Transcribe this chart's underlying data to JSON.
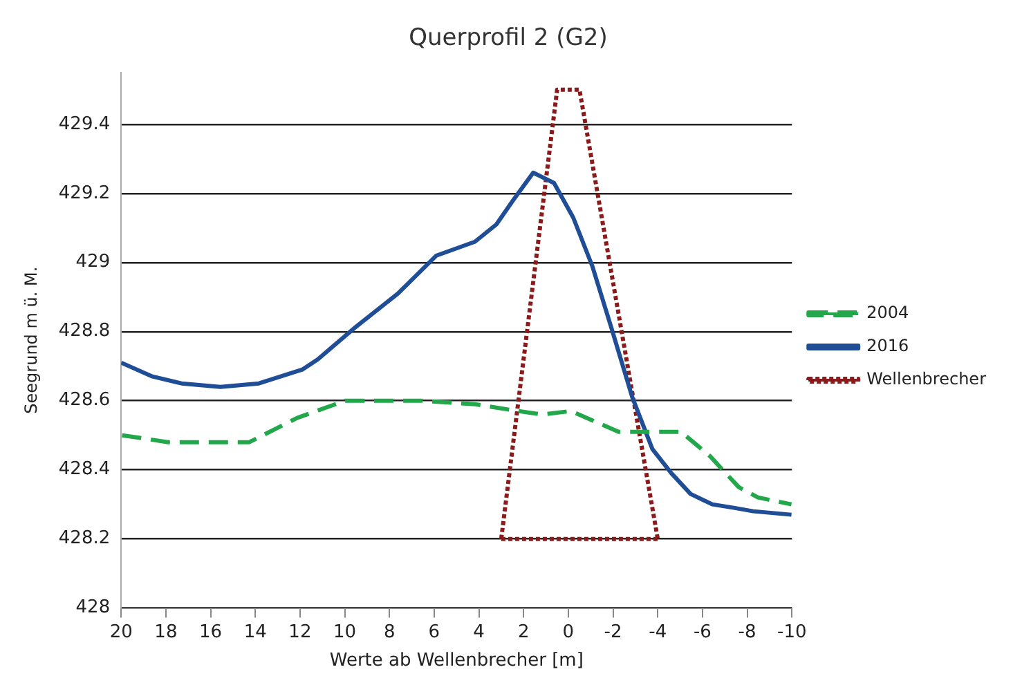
{
  "chart_data": {
    "type": "line",
    "title": "Querprofil 2 (G2)",
    "xlabel": "Werte ab Wellenbrecher [m]",
    "ylabel": "Seegrund m ü. M.",
    "xlim": [
      20,
      -10
    ],
    "xticks": [
      20,
      18,
      16,
      14,
      12,
      10,
      8,
      6,
      4,
      2,
      0,
      -2,
      -4,
      -6,
      -8,
      -10
    ],
    "ylim": [
      428,
      429.55
    ],
    "yticks": [
      428,
      428.2,
      428.4,
      428.6,
      428.8,
      429,
      429.2,
      429.4
    ],
    "grid": "y",
    "legend": "right",
    "marker": "none",
    "series": [
      {
        "name": "2004",
        "color": "#22a84a",
        "line_style": "dashed",
        "x": [
          19.96,
          17.9,
          15.97,
          14.27,
          12.13,
          9.98,
          6.55,
          4.18,
          2.25,
          1.18,
          -0.11,
          -2.25,
          -5.04,
          -6.33,
          -7.62,
          -8.48,
          -9.98
        ],
        "values": [
          428.5,
          428.48,
          428.48,
          428.48,
          428.55,
          428.6,
          428.6,
          428.59,
          428.57,
          428.56,
          428.57,
          428.51,
          428.51,
          428.44,
          428.35,
          428.32,
          428.3
        ]
      },
      {
        "name": "2016",
        "color": "#1f4e96",
        "line_style": "solid",
        "x": [
          20,
          18.6,
          17.3,
          15.56,
          13.84,
          11.9,
          11.2,
          9.57,
          7.62,
          5.9,
          4.18,
          3.22,
          2.47,
          1.57,
          0.64,
          -0.22,
          -1.07,
          -1.93,
          -2.86,
          -3.76,
          -4.61,
          -5.47,
          -6.44,
          -7.4,
          -8.27,
          -9.98
        ],
        "values": [
          428.71,
          428.67,
          428.65,
          428.64,
          428.65,
          428.69,
          428.72,
          428.81,
          428.91,
          429.02,
          429.06,
          429.11,
          429.18,
          429.26,
          429.23,
          429.13,
          428.99,
          428.81,
          428.61,
          428.46,
          428.39,
          428.33,
          428.3,
          428.29,
          428.28,
          428.27
        ]
      },
      {
        "name": "Wellenbrecher",
        "color": "#8b1a1a",
        "line_style": "dotted",
        "x": [
          3,
          0.5,
          -0.5,
          -4
        ],
        "values": [
          428.2,
          429.5,
          429.5,
          428.2
        ]
      },
      {
        "color": "#8b1a1a",
        "line_style": "dotted",
        "x": [
          3,
          -4
        ],
        "values": [
          428.2,
          428.2
        ]
      }
    ]
  }
}
